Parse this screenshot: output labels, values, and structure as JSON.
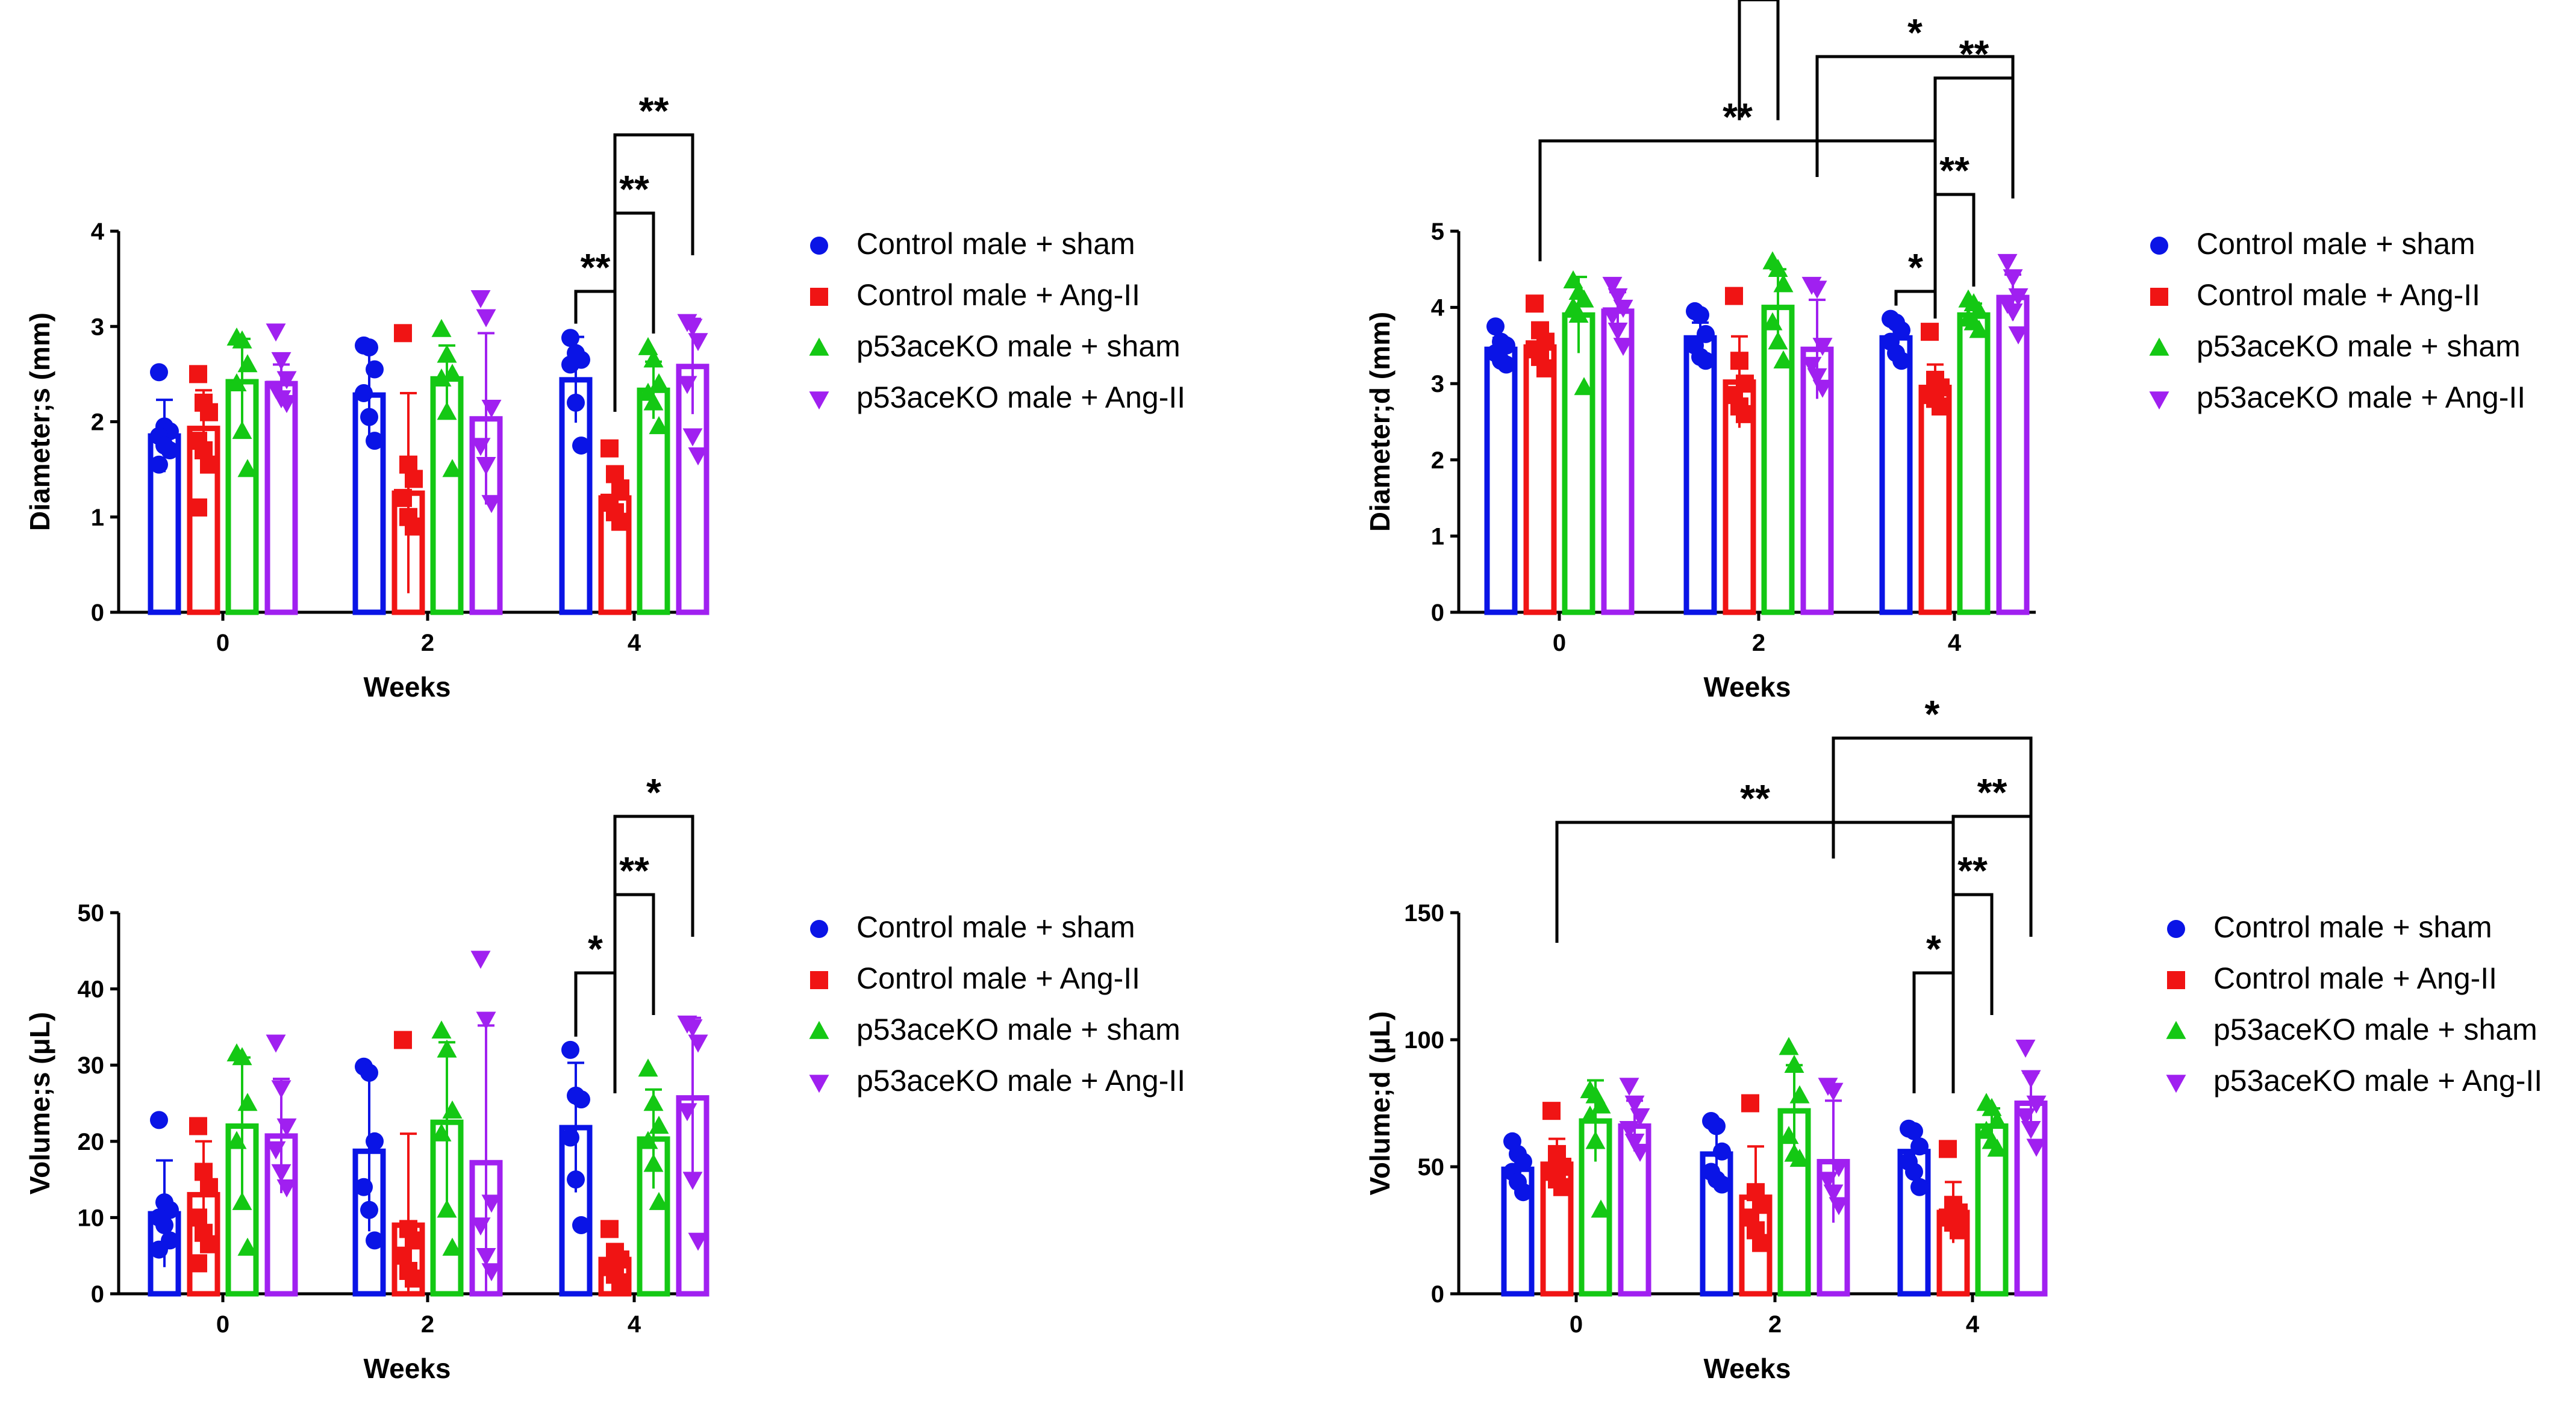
{
  "colors": {
    "control_sham": "#0a14e6",
    "control_angii": "#f01414",
    "ko_sham": "#14c814",
    "ko_angii": "#a020f0"
  },
  "legend": [
    {
      "label": "Control male + sham",
      "marker": "circle",
      "color": "#0a14e6"
    },
    {
      "label": "Control male + Ang-II",
      "marker": "square",
      "color": "#f01414"
    },
    {
      "label": "p53aceKO male + sham",
      "marker": "triangle-up",
      "color": "#14c814"
    },
    {
      "label": "p53aceKO male + Ang-II",
      "marker": "triangle-down",
      "color": "#a020f0"
    }
  ],
  "chart_data": [
    {
      "type": "bar",
      "ylabel": "Diameter;s (mm)",
      "xlabel": "Weeks",
      "categories": [
        "0",
        "2",
        "4"
      ],
      "ylim": [
        0,
        4
      ],
      "yticks": [
        "0",
        "1",
        "2",
        "3",
        "4"
      ],
      "series": [
        {
          "name": "Control male + sham",
          "values": [
            1.85,
            2.28,
            2.44
          ],
          "errors": [
            0.38,
            0.5,
            0.45
          ],
          "points": [
            [
              2.52,
              1.95,
              1.9,
              1.85,
              1.75,
              1.7,
              1.55
            ],
            [
              2.8,
              2.78,
              2.55,
              2.3,
              2.05,
              1.8
            ],
            [
              2.88,
              2.72,
              2.65,
              2.6,
              2.2,
              1.75
            ]
          ]
        },
        {
          "name": "Control male + Ang-II",
          "values": [
            1.93,
            1.25,
            1.2
          ],
          "errors": [
            0.4,
            1.05,
            0.25
          ],
          "points": [
            [
              2.5,
              2.2,
              2.1,
              1.8,
              1.7,
              1.55,
              1.1
            ],
            [
              2.93,
              1.55,
              1.4,
              1.2,
              1.0,
              0.9
            ],
            [
              1.72,
              1.45,
              1.3,
              1.15,
              1.05,
              0.95
            ]
          ]
        },
        {
          "name": "p53aceKO male + sham",
          "values": [
            2.42,
            2.45,
            2.33
          ],
          "errors": [
            0.45,
            0.35,
            0.3
          ],
          "points": [
            [
              2.88,
              2.85,
              2.6,
              2.4,
              1.9,
              1.5
            ],
            [
              2.97,
              2.7,
              2.5,
              2.45,
              2.1,
              1.5
            ],
            [
              2.78,
              2.65,
              2.4,
              2.3,
              2.2,
              1.95
            ]
          ]
        },
        {
          "name": "p53aceKO male + Ang-II",
          "values": [
            2.4,
            2.03,
            2.58
          ],
          "errors": [
            0.2,
            0.9,
            0.5
          ],
          "points": [
            [
              2.95,
              2.65,
              2.45,
              2.35,
              2.25,
              2.2
            ],
            [
              3.3,
              3.1,
              2.15,
              1.75,
              1.55,
              1.15
            ],
            [
              3.05,
              3.0,
              2.85,
              2.4,
              1.85,
              1.65
            ]
          ]
        }
      ],
      "comparisons": [
        {
          "week": "4",
          "from": "Control male + sham",
          "to": "Control male + Ang-II",
          "label": "**"
        },
        {
          "week": "4",
          "from": "Control male + Ang-II",
          "to": "p53aceKO male + sham",
          "label": "**"
        },
        {
          "week": "4",
          "from": "Control male + Ang-II",
          "to": "p53aceKO male + Ang-II",
          "label": "**"
        }
      ]
    },
    {
      "type": "bar",
      "ylabel": "Diameter;d (mm)",
      "xlabel": "Weeks",
      "categories": [
        "0",
        "2",
        "4"
      ],
      "ylim": [
        0,
        5
      ],
      "yticks": [
        "0",
        "1",
        "2",
        "3",
        "4",
        "5"
      ],
      "series": [
        {
          "name": "Control male + sham",
          "values": [
            3.45,
            3.6,
            3.6
          ],
          "errors": [
            0.15,
            0.2,
            0.15
          ],
          "points": [
            [
              3.75,
              3.55,
              3.5,
              3.4,
              3.3,
              3.25
            ],
            [
              3.95,
              3.9,
              3.65,
              3.5,
              3.35,
              3.3
            ],
            [
              3.85,
              3.8,
              3.7,
              3.55,
              3.4,
              3.3
            ]
          ]
        },
        {
          "name": "Control male + Ang-II",
          "values": [
            3.48,
            3.02,
            2.95
          ],
          "errors": [
            0.2,
            0.6,
            0.3
          ],
          "points": [
            [
              4.05,
              3.7,
              3.55,
              3.45,
              3.35,
              3.2
            ],
            [
              4.15,
              3.3,
              3.0,
              2.85,
              2.7,
              2.6
            ],
            [
              3.68,
              3.05,
              2.95,
              2.85,
              2.8,
              2.7
            ]
          ]
        },
        {
          "name": "p53aceKO male + sham",
          "values": [
            3.9,
            4.0,
            3.9
          ],
          "errors": [
            0.5,
            0.5,
            0.15
          ],
          "points": [
            [
              4.35,
              4.2,
              4.1,
              4.0,
              3.9,
              2.95
            ],
            [
              4.6,
              4.5,
              4.3,
              3.8,
              3.55,
              3.3
            ],
            [
              4.1,
              4.05,
              3.95,
              3.85,
              3.8,
              3.7
            ]
          ]
        },
        {
          "name": "p53aceKO male + Ang-II",
          "values": [
            3.95,
            3.45,
            4.13
          ],
          "errors": [
            0.25,
            0.65,
            0.3
          ],
          "points": [
            [
              4.3,
              4.15,
              4.0,
              3.9,
              3.7,
              3.5
            ],
            [
              4.3,
              4.25,
              3.5,
              3.25,
              3.1,
              2.95
            ],
            [
              4.6,
              4.4,
              4.15,
              4.05,
              3.95,
              3.65
            ]
          ]
        }
      ],
      "comparisons": [
        {
          "week": "4",
          "from": "Control male + sham",
          "to": "Control male + Ang-II",
          "label": "*"
        },
        {
          "week": "4",
          "from": "Control male + Ang-II",
          "to": "p53aceKO male + sham",
          "label": "**"
        },
        {
          "week": "4",
          "from": "Control male + Ang-II",
          "to": "p53aceKO male + Ang-II",
          "label": "**"
        },
        {
          "week": "2",
          "from": "Control male + Ang-II",
          "to": "p53aceKO male + sham",
          "label": "*"
        },
        {
          "week": "0",
          "from": "Control male + Ang-II",
          "to_week": "4",
          "to": "Control male + Ang-II",
          "label": "**"
        },
        {
          "week": "2",
          "from": "p53aceKO male + Ang-II",
          "to_week": "4",
          "to": "p53aceKO male + Ang-II",
          "label": "*"
        }
      ]
    },
    {
      "type": "bar",
      "ylabel": "Volume;s (μL)",
      "xlabel": "Weeks",
      "categories": [
        "0",
        "2",
        "4"
      ],
      "ylim": [
        0,
        50
      ],
      "yticks": [
        "0",
        "10",
        "20",
        "30",
        "40",
        "50"
      ],
      "series": [
        {
          "name": "Control male + sham",
          "values": [
            10.5,
            18.7,
            21.8
          ],
          "errors": [
            7.0,
            10.5,
            8.5
          ],
          "points": [
            [
              22.8,
              12.0,
              11.0,
              10.0,
              9.0,
              7.0,
              5.8
            ],
            [
              29.8,
              29.0,
              20.0,
              14.0,
              11.0,
              7.0
            ],
            [
              32.0,
              26.0,
              25.5,
              20.5,
              15.0,
              9.0
            ]
          ]
        },
        {
          "name": "Control male + Ang-II",
          "values": [
            13.0,
            9.0,
            4.5
          ],
          "errors": [
            7.0,
            12.0,
            2.0
          ],
          "points": [
            [
              22.0,
              16.0,
              14.0,
              10.0,
              8.0,
              6.5,
              4.0
            ],
            [
              33.3,
              8.5,
              7.0,
              5.0,
              3.0,
              2.0
            ],
            [
              8.5,
              5.5,
              4.5,
              3.5,
              2.5,
              1.5
            ]
          ]
        },
        {
          "name": "p53aceKO male + sham",
          "values": [
            22.0,
            22.5,
            20.3
          ],
          "errors": [
            9.0,
            10.5,
            6.5
          ],
          "points": [
            [
              31.5,
              31.0,
              25.0,
              20.0,
              12.0,
              6.0
            ],
            [
              34.5,
              32.0,
              24.0,
              21.0,
              11.0,
              6.0
            ],
            [
              29.5,
              25.0,
              22.0,
              20.0,
              17.0,
              12.0
            ]
          ]
        },
        {
          "name": "p53aceKO male + Ang-II",
          "values": [
            20.7,
            17.2,
            25.7
          ],
          "errors": [
            7.5,
            18.0,
            10.5
          ],
          "points": [
            [
              33.0,
              27.0,
              22.0,
              19.0,
              16.0,
              14.0
            ],
            [
              44.0,
              36.0,
              12.0,
              9.0,
              5.0,
              3.0
            ],
            [
              35.5,
              35.0,
              33.0,
              24.0,
              15.0,
              7.0
            ]
          ]
        }
      ],
      "comparisons": [
        {
          "week": "4",
          "from": "Control male + sham",
          "to": "Control male + Ang-II",
          "label": "*"
        },
        {
          "week": "4",
          "from": "Control male + Ang-II",
          "to": "p53aceKO male + sham",
          "label": "**"
        },
        {
          "week": "4",
          "from": "Control male + Ang-II",
          "to": "p53aceKO male + Ang-II",
          "label": "*"
        }
      ]
    },
    {
      "type": "bar",
      "ylabel": "Volume;d (μL)",
      "xlabel": "Weeks",
      "categories": [
        "0",
        "2",
        "4"
      ],
      "ylim": [
        0,
        150
      ],
      "yticks": [
        "0",
        "50",
        "100",
        "150"
      ],
      "series": [
        {
          "name": "Control male + sham",
          "values": [
            49,
            55,
            56
          ],
          "errors": [
            7,
            10,
            8
          ],
          "points": [
            [
              60,
              55,
              52,
              48,
              44,
              40
            ],
            [
              68,
              66,
              56,
              48,
              45,
              43
            ],
            [
              65,
              64,
              58,
              52,
              48,
              42
            ]
          ]
        },
        {
          "name": "Control male + Ang-II",
          "values": [
            51,
            38,
            32
          ],
          "errors": [
            10,
            20,
            12
          ],
          "points": [
            [
              72,
              55,
              50,
              48,
              45,
              42
            ],
            [
              75,
              40,
              35,
              30,
              25,
              20
            ],
            [
              57,
              35,
              32,
              30,
              28,
              25
            ]
          ]
        },
        {
          "name": "p53aceKO male + sham",
          "values": [
            68,
            72,
            66
          ],
          "errors": [
            16,
            18,
            7
          ],
          "points": [
            [
              80,
              78,
              74,
              70,
              60,
              33
            ],
            [
              97,
              90,
              78,
              62,
              55,
              53
            ],
            [
              75,
              73,
              68,
              64,
              60,
              57
            ]
          ]
        },
        {
          "name": "p53aceKO male + Ang-II",
          "values": [
            66,
            52,
            75
          ],
          "errors": [
            10,
            24,
            12
          ],
          "points": [
            [
              82,
              75,
              70,
              65,
              60,
              56
            ],
            [
              82,
              80,
              50,
              45,
              40,
              35
            ],
            [
              97,
              85,
              75,
              70,
              65,
              58
            ]
          ]
        }
      ],
      "comparisons": [
        {
          "week": "4",
          "from": "Control male + sham",
          "to": "Control male + Ang-II",
          "label": "*"
        },
        {
          "week": "4",
          "from": "Control male + Ang-II",
          "to": "p53aceKO male + sham",
          "label": "**"
        },
        {
          "week": "4",
          "from": "Control male + Ang-II",
          "to": "p53aceKO male + Ang-II",
          "label": "**"
        },
        {
          "week": "0",
          "from": "Control male + Ang-II",
          "to_week": "4",
          "to": "Control male + Ang-II",
          "label": "**"
        },
        {
          "week": "2",
          "from": "p53aceKO male + Ang-II",
          "to_week": "4",
          "to": "p53aceKO male + Ang-II",
          "label": "*"
        }
      ]
    }
  ]
}
